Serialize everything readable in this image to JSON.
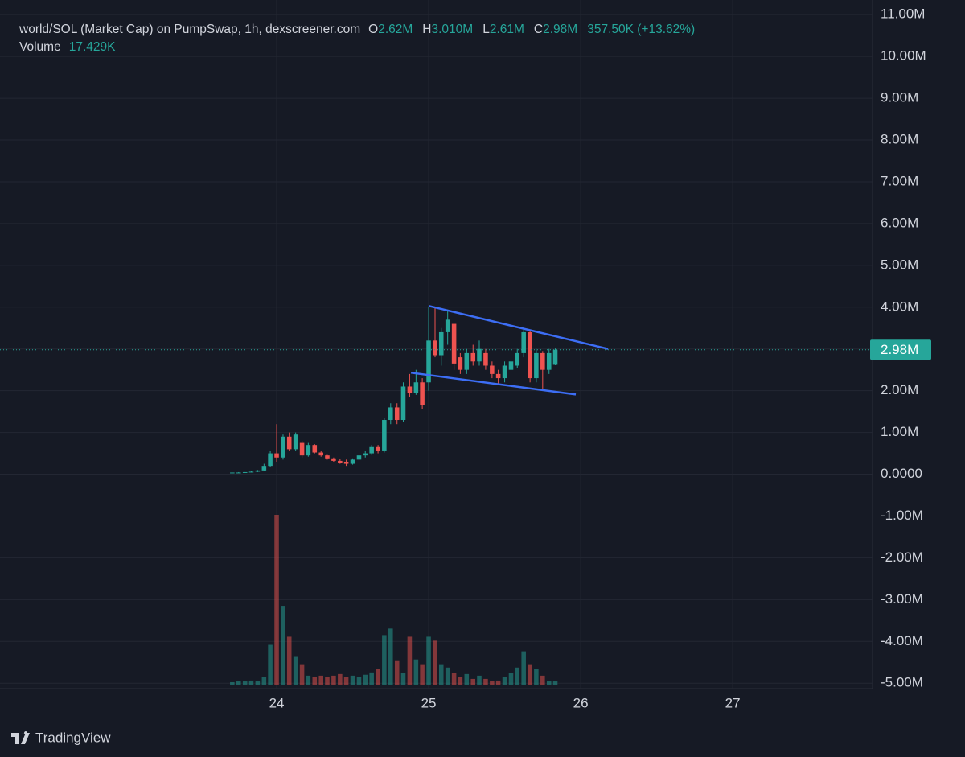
{
  "chart_data": {
    "type": "candlestick",
    "legend": {
      "title": "world/SOL (Market Cap) on PumpSwap, 1h, dexscreener.com",
      "ohlc": [
        {
          "key": "O",
          "value": "2.62M"
        },
        {
          "key": "H",
          "value": "3.010M"
        },
        {
          "key": "L",
          "value": "2.61M"
        },
        {
          "key": "C",
          "value": "2.98M"
        }
      ],
      "change": "357.50K (+13.62%)",
      "volume_label": "Volume",
      "volume_value": "17.429K"
    },
    "brand": "TradingView",
    "up_color": "#26a69a",
    "down_color": "#ef5350",
    "grid": true,
    "xlim": [
      22.18,
      27.92
    ],
    "xticks": [
      24,
      25,
      26,
      27
    ],
    "ylim": [
      -5.13,
      11.35
    ],
    "yticks": [
      {
        "value": 11,
        "label": "11.00M"
      },
      {
        "value": 10,
        "label": "10.00M"
      },
      {
        "value": 9,
        "label": "9.00M"
      },
      {
        "value": 8,
        "label": "8.00M"
      },
      {
        "value": 7,
        "label": "7.00M"
      },
      {
        "value": 6,
        "label": "6.00M"
      },
      {
        "value": 5,
        "label": "5.00M"
      },
      {
        "value": 4,
        "label": "4.00M"
      },
      {
        "value": 3,
        "label": "3.00M"
      },
      {
        "value": 2,
        "label": "2.00M"
      },
      {
        "value": 1,
        "label": "1.00M"
      },
      {
        "value": 0,
        "label": "0.0000"
      },
      {
        "value": -1,
        "label": "-1.00M"
      },
      {
        "value": -2,
        "label": "-2.00M"
      },
      {
        "value": -3,
        "label": "-3.00M"
      },
      {
        "value": -4,
        "label": "-4.00M"
      },
      {
        "value": -5,
        "label": "-5.00M"
      }
    ],
    "x": [
      23.708,
      23.75,
      23.792,
      23.833,
      23.875,
      23.917,
      23.958,
      24.0,
      24.042,
      24.083,
      24.125,
      24.167,
      24.208,
      24.25,
      24.292,
      24.333,
      24.375,
      24.417,
      24.458,
      24.5,
      24.542,
      24.583,
      24.625,
      24.667,
      24.708,
      24.75,
      24.792,
      24.833,
      24.875,
      24.917,
      24.958,
      25.0,
      25.042,
      25.083,
      25.125,
      25.167,
      25.208,
      25.25,
      25.292,
      25.333,
      25.375,
      25.417,
      25.458,
      25.5,
      25.542,
      25.583,
      25.625,
      25.667,
      25.708,
      25.75,
      25.792,
      25.833
    ],
    "open": [
      0.03,
      0.04,
      0.04,
      0.05,
      0.06,
      0.09,
      0.2,
      0.5,
      0.4,
      0.9,
      0.6,
      0.75,
      0.45,
      0.7,
      0.52,
      0.45,
      0.38,
      0.32,
      0.3,
      0.25,
      0.35,
      0.45,
      0.5,
      0.65,
      0.55,
      1.3,
      1.6,
      1.3,
      2.1,
      1.95,
      2.2,
      2.2,
      3.2,
      2.85,
      3.4,
      3.6,
      2.8,
      2.5,
      2.9,
      2.7,
      2.9,
      2.6,
      2.4,
      2.3,
      2.5,
      2.6,
      2.9,
      3.4,
      2.3,
      2.9,
      2.5,
      2.62
    ],
    "high": [
      0.04,
      0.05,
      0.05,
      0.07,
      0.1,
      0.25,
      0.55,
      1.2,
      0.95,
      1.0,
      1.0,
      0.8,
      0.75,
      0.72,
      0.55,
      0.48,
      0.4,
      0.36,
      0.35,
      0.38,
      0.48,
      0.55,
      0.7,
      0.7,
      1.35,
      1.7,
      1.7,
      2.2,
      2.4,
      2.5,
      2.3,
      4.0,
      4.0,
      3.5,
      3.9,
      3.6,
      2.9,
      3.0,
      3.1,
      3.2,
      3.0,
      2.7,
      2.5,
      2.7,
      2.8,
      3.0,
      3.5,
      3.45,
      3.0,
      2.95,
      3.0,
      3.01
    ],
    "low": [
      0.03,
      0.03,
      0.04,
      0.04,
      0.05,
      0.08,
      0.18,
      0.3,
      0.35,
      0.55,
      0.55,
      0.4,
      0.42,
      0.5,
      0.42,
      0.35,
      0.3,
      0.25,
      0.2,
      0.23,
      0.32,
      0.4,
      0.48,
      0.5,
      0.52,
      1.2,
      1.2,
      1.25,
      1.85,
      1.9,
      1.55,
      2.0,
      2.8,
      2.6,
      3.1,
      2.5,
      2.4,
      2.4,
      2.6,
      2.6,
      2.5,
      2.3,
      2.15,
      2.2,
      2.45,
      2.55,
      2.8,
      2.2,
      2.2,
      2.0,
      2.4,
      2.61
    ],
    "close": [
      0.04,
      0.04,
      0.05,
      0.06,
      0.09,
      0.2,
      0.5,
      0.4,
      0.9,
      0.6,
      0.95,
      0.45,
      0.7,
      0.52,
      0.45,
      0.38,
      0.32,
      0.28,
      0.25,
      0.35,
      0.45,
      0.5,
      0.65,
      0.55,
      1.3,
      1.6,
      1.3,
      2.1,
      1.95,
      2.2,
      1.65,
      3.2,
      2.85,
      3.4,
      3.7,
      2.65,
      2.5,
      2.9,
      2.7,
      3.0,
      2.6,
      2.4,
      2.3,
      2.6,
      2.7,
      2.9,
      3.4,
      2.3,
      2.9,
      2.5,
      2.9,
      2.98
    ],
    "volume": [
      14,
      18,
      18,
      21,
      18,
      35,
      175,
      735,
      343,
      210,
      123,
      88,
      42,
      35,
      42,
      35,
      42,
      49,
      35,
      42,
      35,
      46,
      56,
      70,
      217,
      245,
      105,
      53,
      210,
      112,
      88,
      210,
      193,
      88,
      77,
      53,
      35,
      49,
      28,
      42,
      28,
      18,
      21,
      35,
      53,
      77,
      147,
      88,
      70,
      42,
      18,
      17.429
    ],
    "last_price": {
      "value": 2.98,
      "label": "2.98M"
    },
    "trendlines": [
      {
        "x": [
          25.0,
          26.18
        ],
        "y": [
          4.03,
          3.0
        ],
        "color": "#3d6ef5"
      },
      {
        "x": [
          24.884,
          25.968
        ],
        "y": [
          2.43,
          1.91
        ],
        "color": "#3d6ef5"
      }
    ]
  }
}
